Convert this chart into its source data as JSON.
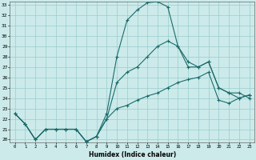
{
  "xlabel": "Humidex (Indice chaleur)",
  "ylabel": "",
  "background_color": "#cceaea",
  "grid_color": "#99cccc",
  "line_color": "#1a6b6b",
  "x_values": [
    0,
    1,
    2,
    3,
    4,
    5,
    6,
    7,
    8,
    9,
    10,
    11,
    12,
    13,
    14,
    15,
    16,
    17,
    18,
    19,
    20,
    21,
    22,
    23
  ],
  "line1": [
    22.5,
    21.5,
    20.0,
    21.0,
    21.0,
    21.0,
    21.0,
    19.8,
    20.3,
    22.5,
    28.0,
    31.5,
    32.5,
    33.2,
    33.3,
    32.8,
    29.0,
    27.5,
    27.0,
    27.5,
    25.0,
    24.5,
    24.5,
    24.0
  ],
  "line2": [
    22.5,
    21.5,
    20.0,
    21.0,
    21.0,
    21.0,
    21.0,
    19.8,
    20.3,
    22.0,
    25.5,
    26.5,
    27.0,
    28.0,
    29.0,
    29.5,
    29.0,
    27.0,
    27.0,
    27.5,
    25.0,
    24.5,
    24.0,
    24.3
  ],
  "line3": [
    22.5,
    21.5,
    20.0,
    21.0,
    21.0,
    21.0,
    21.0,
    19.8,
    20.3,
    22.0,
    23.0,
    23.3,
    23.8,
    24.2,
    24.5,
    25.0,
    25.5,
    25.8,
    26.0,
    26.5,
    23.8,
    23.5,
    24.0,
    24.3
  ],
  "ylim": [
    20,
    33
  ],
  "yticks": [
    20,
    21,
    22,
    23,
    24,
    25,
    26,
    27,
    28,
    29,
    30,
    31,
    32,
    33
  ],
  "xlim": [
    -0.5,
    23.5
  ],
  "xticks": [
    0,
    1,
    2,
    3,
    4,
    5,
    6,
    7,
    8,
    9,
    10,
    11,
    12,
    13,
    14,
    15,
    16,
    17,
    18,
    19,
    20,
    21,
    22,
    23
  ],
  "figsize": [
    3.2,
    2.0
  ],
  "dpi": 100
}
